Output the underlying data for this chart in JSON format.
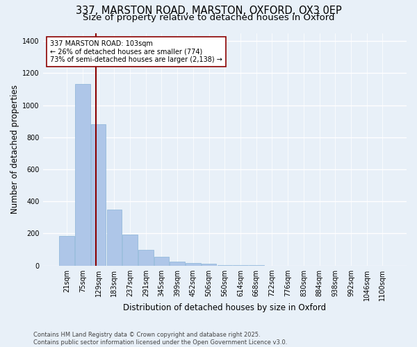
{
  "title_line1": "337, MARSTON ROAD, MARSTON, OXFORD, OX3 0EP",
  "title_line2": "Size of property relative to detached houses in Oxford",
  "xlabel": "Distribution of detached houses by size in Oxford",
  "ylabel": "Number of detached properties",
  "categories": [
    "21sqm",
    "75sqm",
    "129sqm",
    "183sqm",
    "237sqm",
    "291sqm",
    "345sqm",
    "399sqm",
    "452sqm",
    "506sqm",
    "560sqm",
    "614sqm",
    "668sqm",
    "722sqm",
    "776sqm",
    "830sqm",
    "884sqm",
    "938sqm",
    "992sqm",
    "1046sqm",
    "1100sqm"
  ],
  "bar_heights": [
    185,
    1130,
    880,
    350,
    195,
    100,
    55,
    25,
    15,
    10,
    5,
    3,
    2,
    0,
    0,
    0,
    0,
    0,
    0,
    0,
    0
  ],
  "bar_color": "#aec6e8",
  "bar_edge_color": "#8ab4d8",
  "background_color": "#e8f0f8",
  "grid_color": "#ffffff",
  "vline_x": 1.82,
  "vline_color": "#8b0000",
  "annotation_text": "337 MARSTON ROAD: 103sqm\n← 26% of detached houses are smaller (774)\n73% of semi-detached houses are larger (2,138) →",
  "annotation_box_color": "#ffffff",
  "annotation_border_color": "#8b0000",
  "ylim": [
    0,
    1450
  ],
  "yticks": [
    0,
    200,
    400,
    600,
    800,
    1000,
    1200,
    1400
  ],
  "footer_line1": "Contains HM Land Registry data © Crown copyright and database right 2025.",
  "footer_line2": "Contains public sector information licensed under the Open Government Licence v3.0.",
  "title_fontsize": 10.5,
  "subtitle_fontsize": 9.5,
  "axis_label_fontsize": 8.5,
  "tick_fontsize": 7,
  "annotation_fontsize": 7,
  "footer_fontsize": 6
}
